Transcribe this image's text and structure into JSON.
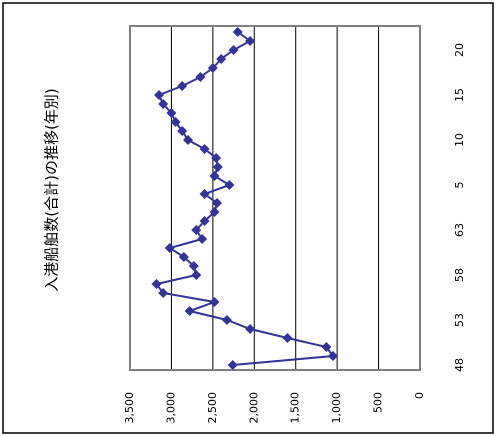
{
  "chart_data": {
    "type": "line",
    "title": "入港船舶数(合計)の推移(年別)",
    "categories": [
      "48",
      null,
      null,
      null,
      null,
      "53",
      null,
      null,
      null,
      null,
      "58",
      null,
      null,
      null,
      null,
      "63",
      null,
      null,
      null,
      null,
      "5",
      null,
      null,
      null,
      null,
      "10",
      null,
      null,
      null,
      null,
      "15",
      null,
      null,
      null,
      null,
      "20",
      null,
      null
    ],
    "series": [
      {
        "name": "入港船舶数",
        "color": "#333399",
        "values": [
          2260,
          1050,
          1130,
          1600,
          2050,
          2330,
          2780,
          2480,
          3100,
          3180,
          2700,
          2730,
          2850,
          3020,
          2630,
          2700,
          2600,
          2480,
          2450,
          2600,
          2300,
          2480,
          2440,
          2460,
          2600,
          2800,
          2870,
          2950,
          3000,
          3100,
          3150,
          2870,
          2650,
          2500,
          2400,
          2250,
          2050,
          2200
        ]
      }
    ],
    "ylim": [
      0,
      3500
    ],
    "yticks": [
      0,
      500,
      {
        "value": 1000,
        "label": "1,000"
      },
      {
        "value": 1500,
        "label": "1,500"
      },
      {
        "value": 2000,
        "label": "2,000"
      },
      {
        "value": 2500,
        "label": "2,500"
      },
      {
        "value": 3000,
        "label": "3,000"
      },
      {
        "value": 3500,
        "label": "3,500"
      }
    ],
    "grid": true
  }
}
